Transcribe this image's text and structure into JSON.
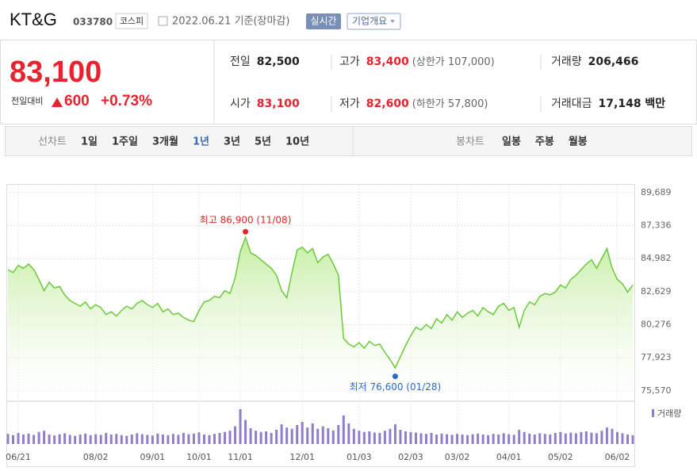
{
  "header": {
    "name": "KT&G",
    "code": "033780",
    "market": "코스피",
    "date": "2022.06.21 기준(장마감)",
    "realtime": "실시간",
    "company_info": "기업개요"
  },
  "quote": {
    "price": "83,100",
    "change_label": "전일대비",
    "change": "600",
    "change_rate": "+0.73%",
    "stats": [
      {
        "label": "전일",
        "value": "82,500"
      },
      {
        "label": "고가",
        "value": "83,400",
        "note": "(상한가 107,000)",
        "color": "#e8222e"
      },
      {
        "label": "거래량",
        "value": "206,466"
      },
      {
        "label": "시가",
        "value": "83,100",
        "color": "#e8222e"
      },
      {
        "label": "저가",
        "value": "82,600",
        "note": "(하한가 57,800)",
        "color": "#e8222e"
      },
      {
        "label": "거래대금",
        "value": "17,148 백만"
      }
    ]
  },
  "tabs": {
    "line_label": "선차트",
    "periods": [
      "1일",
      "1주일",
      "3개월",
      "1년",
      "3년",
      "5년",
      "10년"
    ],
    "selected": 3,
    "candle_label": "봉차트",
    "candle_periods": [
      "일봉",
      "주봉",
      "월봉"
    ]
  },
  "chart_data": {
    "type": "line",
    "categories": [
      null,
      null,
      "06/21",
      null,
      null,
      null,
      null,
      null,
      null,
      null,
      null,
      null,
      null,
      null,
      null,
      null,
      null,
      "08/02",
      null,
      null,
      null,
      null,
      null,
      null,
      null,
      null,
      null,
      null,
      "09/01",
      null,
      null,
      null,
      null,
      null,
      null,
      null,
      null,
      "10/01",
      null,
      null,
      null,
      null,
      null,
      null,
      null,
      "11/01",
      null,
      null,
      null,
      null,
      null,
      null,
      null,
      null,
      null,
      null,
      null,
      "12/01",
      null,
      null,
      null,
      null,
      null,
      null,
      null,
      null,
      null,
      null,
      "01/03",
      null,
      null,
      null,
      null,
      null,
      null,
      null,
      null,
      null,
      "02/03",
      null,
      null,
      null,
      null,
      null,
      null,
      null,
      null,
      "03/02",
      null,
      null,
      null,
      null,
      null,
      null,
      null,
      null,
      null,
      "04/01",
      null,
      null,
      null,
      null,
      null,
      null,
      null,
      null,
      null,
      "05/02",
      null,
      null,
      null,
      null,
      null,
      null,
      null,
      null,
      null,
      null,
      "06/02",
      null,
      null,
      null
    ],
    "values": [
      84200,
      84000,
      84500,
      84300,
      84600,
      84200,
      83500,
      82700,
      83300,
      82900,
      83000,
      82400,
      82000,
      81800,
      81600,
      81900,
      81400,
      81700,
      81500,
      81000,
      81200,
      80900,
      81300,
      81600,
      81400,
      81800,
      82000,
      81700,
      81500,
      81800,
      81200,
      81400,
      81000,
      81100,
      80800,
      80600,
      80500,
      81300,
      81900,
      82000,
      82300,
      82200,
      82700,
      82500,
      83600,
      85500,
      86500,
      85400,
      85200,
      84900,
      84600,
      84300,
      83800,
      82700,
      82200,
      84000,
      85600,
      85800,
      85400,
      85700,
      84700,
      85100,
      85300,
      84600,
      83800,
      79300,
      78900,
      78700,
      79000,
      78600,
      79100,
      78800,
      78900,
      78300,
      77800,
      77200,
      78000,
      78800,
      79500,
      80100,
      79900,
      80300,
      80000,
      80700,
      80400,
      81000,
      80600,
      81200,
      80800,
      81100,
      81300,
      80900,
      81500,
      81200,
      81000,
      81600,
      81800,
      81300,
      81500,
      80100,
      81300,
      81900,
      81700,
      82300,
      82500,
      82400,
      82600,
      83100,
      82900,
      83500,
      83800,
      84200,
      84600,
      84900,
      84300,
      85000,
      85700,
      84300,
      83500,
      83200,
      82600,
      83100
    ],
    "volume": [
      320000,
      280000,
      350000,
      300000,
      330000,
      290000,
      380000,
      420000,
      300000,
      270000,
      310000,
      340000,
      290000,
      260000,
      300000,
      330000,
      280000,
      310000,
      290000,
      350000,
      300000,
      320000,
      280000,
      260000,
      300000,
      340000,
      310000,
      290000,
      270000,
      330000,
      300000,
      280000,
      320000,
      290000,
      350000,
      310000,
      330000,
      370000,
      300000,
      280000,
      320000,
      350000,
      380000,
      420000,
      560000,
      1100000,
      760000,
      500000,
      420000,
      380000,
      400000,
      350000,
      450000,
      620000,
      520000,
      480000,
      600000,
      700000,
      520000,
      650000,
      480000,
      560000,
      500000,
      430000,
      600000,
      900000,
      650000,
      480000,
      420000,
      380000,
      400000,
      360000,
      350000,
      420000,
      480000,
      620000,
      450000,
      400000,
      380000,
      360000,
      340000,
      320000,
      350000,
      300000,
      330000,
      310000,
      290000,
      320000,
      300000,
      280000,
      310000,
      330000,
      300000,
      280000,
      320000,
      300000,
      340000,
      310000,
      290000,
      450000,
      380000,
      330000,
      300000,
      340000,
      320000,
      300000,
      350000,
      380000,
      330000,
      360000,
      340000,
      380000,
      400000,
      360000,
      340000,
      420000,
      520000,
      480000,
      380000,
      340000,
      300000,
      280000
    ],
    "volume_ylim": [
      0,
      1200000
    ],
    "volume_label": "거래량",
    "volume_color": "#8f7fc8",
    "color": "#6cc93c",
    "fill": "#c4eea0",
    "ylim": [
      75000,
      90300
    ],
    "yticks": [
      {
        "value": 75570,
        "label": "75,570"
      },
      {
        "value": 77923,
        "label": "77,923"
      },
      {
        "value": 80276,
        "label": "80,276"
      },
      {
        "value": 82629,
        "label": "82,629"
      },
      {
        "value": 84982,
        "label": "84,982"
      },
      {
        "value": 87336,
        "label": "87,336"
      },
      {
        "value": 89689,
        "label": "89,689"
      }
    ],
    "grid": true,
    "high": {
      "label": "최고 86,900 (11/08)",
      "value": 86900,
      "color": "#e52525"
    },
    "low": {
      "label": "최저 76,600 (01/28)",
      "value": 76600,
      "color": "#2a6bd1"
    }
  }
}
